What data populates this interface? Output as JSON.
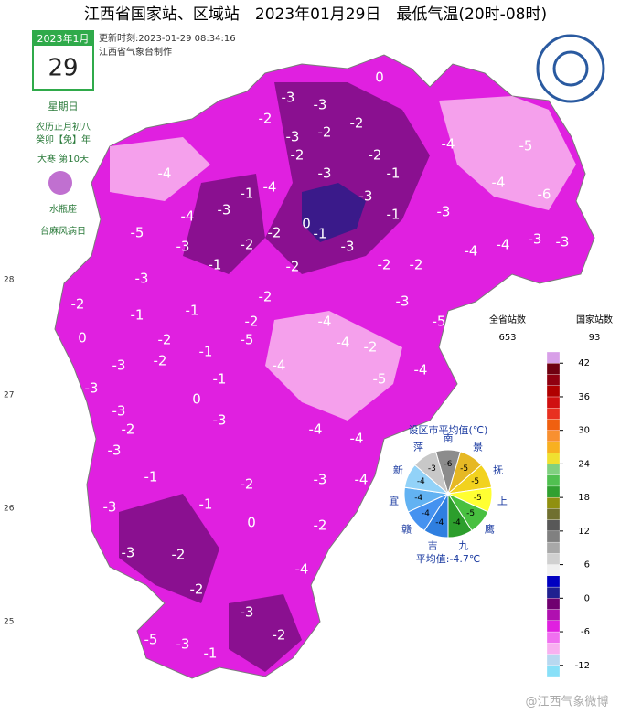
{
  "title": "江西省国家站、区域站　2023年01月29日　最低气温(20时-08时)",
  "calendar": {
    "month": "2023年1月",
    "day": "29",
    "weekday": "星期日",
    "lunar": "农历正月初八",
    "ganzhi": "癸卯【兔】年",
    "jieqi": "大寒 第10天",
    "zodiac": "水瓶座",
    "festival": "台麻风病日"
  },
  "update": {
    "time": "更新时刻:2023-01-29 08:34:16",
    "maker": "江西省气象台制作"
  },
  "lat_labels": [
    "28",
    "27",
    "26",
    "25"
  ],
  "map_values": [
    0,
    -3,
    -3,
    -2,
    -2,
    -3,
    -2,
    -4,
    -5,
    -2,
    -2,
    -1,
    -3,
    -4,
    -1,
    -4,
    -4,
    -6,
    -3,
    -3,
    -4,
    0,
    -1,
    -1,
    -3,
    -5,
    -2,
    -2,
    -3,
    -3,
    -4,
    -3,
    -3,
    -1,
    -2,
    -2,
    -2,
    -4,
    -3,
    -2,
    -3,
    -2,
    -1,
    -1,
    -4,
    -5,
    -2,
    -5,
    0,
    -2,
    -4,
    -1,
    -3,
    -2,
    -4,
    -2,
    -4,
    -1,
    -5,
    -3,
    0,
    -3,
    -2,
    -3,
    -4,
    -3,
    -4,
    -1,
    -2,
    -3,
    -4,
    -3,
    -1,
    0,
    -2,
    -3,
    -2,
    -4,
    -2,
    -3,
    -3,
    -2,
    -5,
    -1
  ],
  "pie": {
    "title": "设区市平均值(℃)",
    "cities": [
      {
        "name": "南",
        "value": "-6",
        "color": "#8c8c8c"
      },
      {
        "name": "景",
        "value": "-5",
        "color": "#e6b824"
      },
      {
        "name": "抚",
        "value": "-5",
        "color": "#f2d21e"
      },
      {
        "name": "上",
        "value": "-5",
        "color": "#ffff32"
      },
      {
        "name": "鹰",
        "value": "-5",
        "color": "#48c040"
      },
      {
        "name": "九",
        "value": "-4",
        "color": "#2c9e2c"
      },
      {
        "name": "吉",
        "value": "-4",
        "color": "#2f7fe0"
      },
      {
        "name": "赣",
        "value": "-4",
        "color": "#4592f0"
      },
      {
        "name": "宜",
        "value": "-4",
        "color": "#62b2f2"
      },
      {
        "name": "新",
        "value": "-4",
        "color": "#92d2f8"
      },
      {
        "name": "萍",
        "value": "-3",
        "color": "#c8c8c8"
      }
    ],
    "average": "平均值:-4.7℃"
  },
  "legend": {
    "all_label": "全省站数",
    "all_count": "653",
    "nat_label": "国家站数",
    "nat_count": "93",
    "ylim": [
      -14,
      44
    ],
    "yticks": [
      42,
      36,
      30,
      24,
      18,
      12,
      6,
      0,
      -6,
      -12
    ],
    "colors": [
      "#88e0f8",
      "#b8d8f0",
      "#f8b0f0",
      "#f070f0",
      "#e020e0",
      "#b010b0",
      "#700070",
      "#202090",
      "#0000c0",
      "#f0f0f0",
      "#d0d0d0",
      "#a8a8a8",
      "#808080",
      "#585858",
      "#707030",
      "#909010",
      "#30a030",
      "#50c050",
      "#80d080",
      "#f0e030",
      "#f8b020",
      "#f89030",
      "#f06010",
      "#e83020",
      "#d01010",
      "#b00000",
      "#900010",
      "#700010",
      "#d8a0e8"
    ]
  },
  "watermark": "@江西气象微博"
}
